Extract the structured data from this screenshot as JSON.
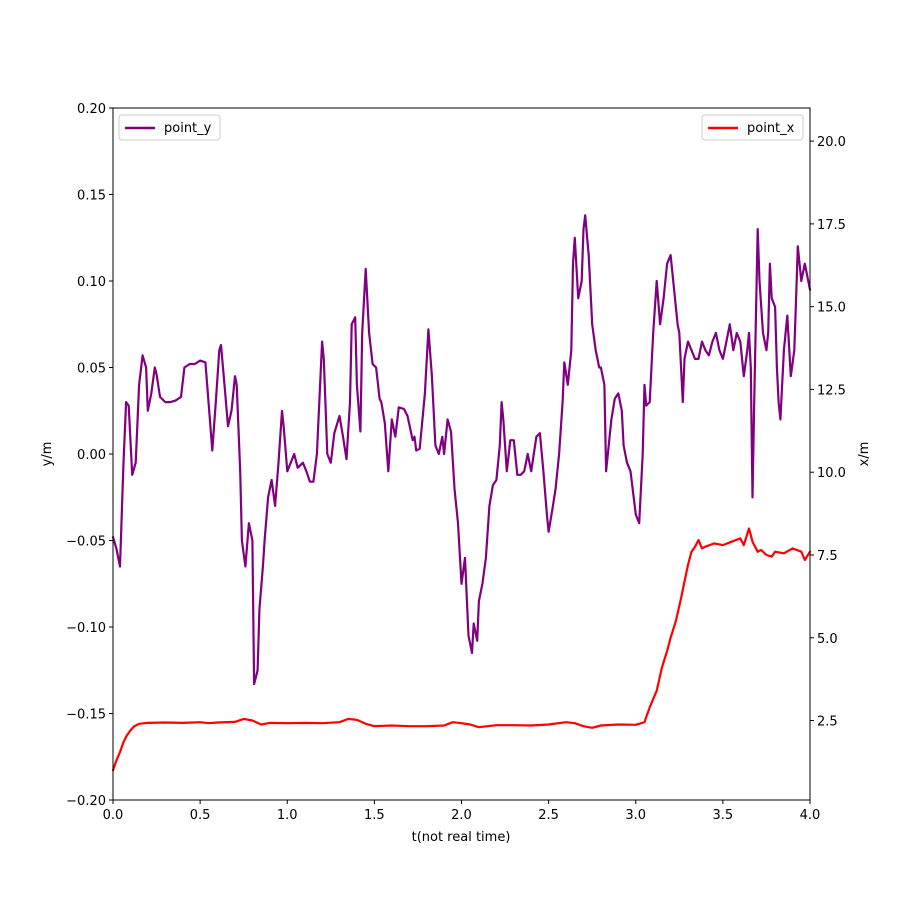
{
  "chart_data": {
    "type": "line",
    "xlabel": "t(not real time)",
    "ylabel_left": "y/m",
    "ylabel_right": "x/m",
    "xlim": [
      0,
      4
    ],
    "ylim_left": [
      -0.2,
      0.2
    ],
    "ylim_right": [
      0.1,
      21.0
    ],
    "x_ticks": [
      0.0,
      0.5,
      1.0,
      1.5,
      2.0,
      2.5,
      3.0,
      3.5,
      4.0
    ],
    "x_tick_labels": [
      "0.0",
      "0.5",
      "1.0",
      "1.5",
      "2.0",
      "2.5",
      "3.0",
      "3.5",
      "4.0"
    ],
    "y_left_ticks": [
      -0.2,
      -0.15,
      -0.1,
      -0.05,
      0.0,
      0.05,
      0.1,
      0.15,
      0.2
    ],
    "y_left_tick_labels": [
      "−0.20",
      "−0.15",
      "−0.10",
      "−0.05",
      "0.00",
      "0.05",
      "0.10",
      "0.15",
      "0.20"
    ],
    "y_right_ticks": [
      2.5,
      5.0,
      7.5,
      10.0,
      12.5,
      15.0,
      17.5,
      20.0
    ],
    "y_right_tick_labels": [
      "2.5",
      "5.0",
      "7.5",
      "10.0",
      "12.5",
      "15.0",
      "17.5",
      "20.0"
    ],
    "grid": false,
    "series": [
      {
        "name": "point_y",
        "axis": "left",
        "color": "#800080",
        "legend_position": "upper-left",
        "points": [
          [
            0.0,
            -0.048
          ],
          [
            0.02,
            -0.055
          ],
          [
            0.04,
            -0.065
          ],
          [
            0.06,
            -0.005
          ],
          [
            0.075,
            0.03
          ],
          [
            0.09,
            0.028
          ],
          [
            0.11,
            -0.012
          ],
          [
            0.13,
            -0.005
          ],
          [
            0.15,
            0.04
          ],
          [
            0.17,
            0.057
          ],
          [
            0.19,
            0.05
          ],
          [
            0.2,
            0.025
          ],
          [
            0.22,
            0.035
          ],
          [
            0.24,
            0.05
          ],
          [
            0.25,
            0.046
          ],
          [
            0.27,
            0.033
          ],
          [
            0.3,
            0.03
          ],
          [
            0.33,
            0.03
          ],
          [
            0.36,
            0.031
          ],
          [
            0.39,
            0.033
          ],
          [
            0.41,
            0.05
          ],
          [
            0.44,
            0.052
          ],
          [
            0.47,
            0.052
          ],
          [
            0.5,
            0.054
          ],
          [
            0.53,
            0.053
          ],
          [
            0.55,
            0.028
          ],
          [
            0.57,
            0.002
          ],
          [
            0.59,
            0.03
          ],
          [
            0.61,
            0.06
          ],
          [
            0.62,
            0.063
          ],
          [
            0.64,
            0.04
          ],
          [
            0.66,
            0.016
          ],
          [
            0.68,
            0.025
          ],
          [
            0.7,
            0.045
          ],
          [
            0.71,
            0.04
          ],
          [
            0.73,
            -0.01
          ],
          [
            0.74,
            -0.05
          ],
          [
            0.76,
            -0.065
          ],
          [
            0.78,
            -0.04
          ],
          [
            0.8,
            -0.05
          ],
          [
            0.81,
            -0.133
          ],
          [
            0.83,
            -0.125
          ],
          [
            0.84,
            -0.09
          ],
          [
            0.86,
            -0.065
          ],
          [
            0.87,
            -0.05
          ],
          [
            0.89,
            -0.025
          ],
          [
            0.91,
            -0.015
          ],
          [
            0.93,
            -0.03
          ],
          [
            0.95,
            -0.005
          ],
          [
            0.97,
            0.025
          ],
          [
            0.98,
            0.015
          ],
          [
            1.0,
            -0.01
          ],
          [
            1.02,
            -0.005
          ],
          [
            1.04,
            0.0
          ],
          [
            1.06,
            -0.008
          ],
          [
            1.09,
            -0.005
          ],
          [
            1.11,
            -0.01
          ],
          [
            1.13,
            -0.016
          ],
          [
            1.15,
            -0.016
          ],
          [
            1.17,
            0.0
          ],
          [
            1.2,
            0.065
          ],
          [
            1.21,
            0.055
          ],
          [
            1.23,
            0.0
          ],
          [
            1.25,
            -0.005
          ],
          [
            1.27,
            0.012
          ],
          [
            1.3,
            0.022
          ],
          [
            1.32,
            0.01
          ],
          [
            1.34,
            -0.003
          ],
          [
            1.36,
            0.03
          ],
          [
            1.37,
            0.075
          ],
          [
            1.39,
            0.079
          ],
          [
            1.4,
            0.04
          ],
          [
            1.42,
            0.013
          ],
          [
            1.43,
            0.07
          ],
          [
            1.45,
            0.107
          ],
          [
            1.47,
            0.07
          ],
          [
            1.49,
            0.052
          ],
          [
            1.51,
            0.05
          ],
          [
            1.53,
            0.032
          ],
          [
            1.54,
            0.03
          ],
          [
            1.56,
            0.018
          ],
          [
            1.58,
            -0.01
          ],
          [
            1.6,
            0.02
          ],
          [
            1.62,
            0.01
          ],
          [
            1.64,
            0.027
          ],
          [
            1.67,
            0.026
          ],
          [
            1.69,
            0.022
          ],
          [
            1.72,
            0.008
          ],
          [
            1.73,
            0.01
          ],
          [
            1.74,
            0.002
          ],
          [
            1.76,
            0.003
          ],
          [
            1.79,
            0.035
          ],
          [
            1.81,
            0.072
          ],
          [
            1.83,
            0.045
          ],
          [
            1.85,
            0.005
          ],
          [
            1.87,
            0.0
          ],
          [
            1.89,
            0.01
          ],
          [
            1.9,
            0.0
          ],
          [
            1.92,
            0.02
          ],
          [
            1.94,
            0.013
          ],
          [
            1.96,
            -0.02
          ],
          [
            1.98,
            -0.04
          ],
          [
            2.0,
            -0.075
          ],
          [
            2.02,
            -0.06
          ],
          [
            2.04,
            -0.105
          ],
          [
            2.06,
            -0.115
          ],
          [
            2.07,
            -0.098
          ],
          [
            2.09,
            -0.108
          ],
          [
            2.1,
            -0.085
          ],
          [
            2.12,
            -0.075
          ],
          [
            2.14,
            -0.06
          ],
          [
            2.16,
            -0.03
          ],
          [
            2.18,
            -0.018
          ],
          [
            2.2,
            -0.015
          ],
          [
            2.22,
            0.005
          ],
          [
            2.23,
            0.03
          ],
          [
            2.24,
            0.02
          ],
          [
            2.26,
            -0.01
          ],
          [
            2.28,
            0.008
          ],
          [
            2.3,
            0.008
          ],
          [
            2.32,
            -0.012
          ],
          [
            2.34,
            -0.012
          ],
          [
            2.36,
            -0.01
          ],
          [
            2.38,
            0.0
          ],
          [
            2.4,
            -0.01
          ],
          [
            2.43,
            0.01
          ],
          [
            2.45,
            0.012
          ],
          [
            2.47,
            -0.01
          ],
          [
            2.49,
            -0.035
          ],
          [
            2.5,
            -0.045
          ],
          [
            2.52,
            -0.033
          ],
          [
            2.54,
            -0.02
          ],
          [
            2.56,
            0.0
          ],
          [
            2.58,
            0.03
          ],
          [
            2.59,
            0.053
          ],
          [
            2.61,
            0.04
          ],
          [
            2.63,
            0.06
          ],
          [
            2.64,
            0.11
          ],
          [
            2.65,
            0.125
          ],
          [
            2.67,
            0.09
          ],
          [
            2.69,
            0.1
          ],
          [
            2.7,
            0.13
          ],
          [
            2.71,
            0.138
          ],
          [
            2.73,
            0.115
          ],
          [
            2.75,
            0.075
          ],
          [
            2.77,
            0.06
          ],
          [
            2.79,
            0.05
          ],
          [
            2.8,
            0.05
          ],
          [
            2.82,
            0.04
          ],
          [
            2.83,
            -0.01
          ],
          [
            2.85,
            0.01
          ],
          [
            2.86,
            0.02
          ],
          [
            2.88,
            0.032
          ],
          [
            2.9,
            0.035
          ],
          [
            2.92,
            0.025
          ],
          [
            2.93,
            0.005
          ],
          [
            2.95,
            -0.005
          ],
          [
            2.97,
            -0.01
          ],
          [
            3.0,
            -0.035
          ],
          [
            3.02,
            -0.04
          ],
          [
            3.04,
            0.0
          ],
          [
            3.05,
            0.04
          ],
          [
            3.06,
            0.028
          ],
          [
            3.08,
            0.03
          ],
          [
            3.1,
            0.07
          ],
          [
            3.12,
            0.1
          ],
          [
            3.14,
            0.075
          ],
          [
            3.16,
            0.09
          ],
          [
            3.18,
            0.11
          ],
          [
            3.2,
            0.115
          ],
          [
            3.22,
            0.095
          ],
          [
            3.24,
            0.075
          ],
          [
            3.25,
            0.07
          ],
          [
            3.27,
            0.03
          ],
          [
            3.28,
            0.055
          ],
          [
            3.3,
            0.065
          ],
          [
            3.32,
            0.06
          ],
          [
            3.34,
            0.055
          ],
          [
            3.36,
            0.055
          ],
          [
            3.38,
            0.065
          ],
          [
            3.4,
            0.06
          ],
          [
            3.42,
            0.057
          ],
          [
            3.44,
            0.065
          ],
          [
            3.46,
            0.07
          ],
          [
            3.48,
            0.06
          ],
          [
            3.5,
            0.055
          ],
          [
            3.52,
            0.065
          ],
          [
            3.54,
            0.075
          ],
          [
            3.56,
            0.06
          ],
          [
            3.58,
            0.07
          ],
          [
            3.6,
            0.065
          ],
          [
            3.62,
            0.045
          ],
          [
            3.64,
            0.06
          ],
          [
            3.65,
            0.07
          ],
          [
            3.66,
            0.05
          ],
          [
            3.67,
            -0.025
          ],
          [
            3.68,
            0.03
          ],
          [
            3.7,
            0.13
          ],
          [
            3.71,
            0.1
          ],
          [
            3.73,
            0.07
          ],
          [
            3.75,
            0.06
          ],
          [
            3.76,
            0.07
          ],
          [
            3.77,
            0.11
          ],
          [
            3.78,
            0.09
          ],
          [
            3.8,
            0.085
          ],
          [
            3.81,
            0.05
          ],
          [
            3.82,
            0.03
          ],
          [
            3.83,
            0.02
          ],
          [
            3.85,
            0.06
          ],
          [
            3.87,
            0.08
          ],
          [
            3.89,
            0.045
          ],
          [
            3.91,
            0.06
          ],
          [
            3.92,
            0.09
          ],
          [
            3.93,
            0.12
          ],
          [
            3.95,
            0.1
          ],
          [
            3.97,
            0.11
          ],
          [
            4.0,
            0.095
          ]
        ]
      },
      {
        "name": "point_x",
        "axis": "right",
        "color": "#ff0000",
        "legend_position": "upper-right",
        "points": [
          [
            0.0,
            1.0
          ],
          [
            0.02,
            1.3
          ],
          [
            0.04,
            1.55
          ],
          [
            0.06,
            1.85
          ],
          [
            0.08,
            2.05
          ],
          [
            0.1,
            2.2
          ],
          [
            0.12,
            2.32
          ],
          [
            0.15,
            2.4
          ],
          [
            0.2,
            2.43
          ],
          [
            0.3,
            2.44
          ],
          [
            0.4,
            2.43
          ],
          [
            0.5,
            2.45
          ],
          [
            0.55,
            2.42
          ],
          [
            0.6,
            2.44
          ],
          [
            0.7,
            2.46
          ],
          [
            0.75,
            2.55
          ],
          [
            0.8,
            2.5
          ],
          [
            0.85,
            2.38
          ],
          [
            0.9,
            2.43
          ],
          [
            1.0,
            2.42
          ],
          [
            1.1,
            2.43
          ],
          [
            1.2,
            2.42
          ],
          [
            1.3,
            2.45
          ],
          [
            1.35,
            2.55
          ],
          [
            1.4,
            2.52
          ],
          [
            1.45,
            2.4
          ],
          [
            1.5,
            2.33
          ],
          [
            1.6,
            2.35
          ],
          [
            1.7,
            2.33
          ],
          [
            1.8,
            2.33
          ],
          [
            1.9,
            2.35
          ],
          [
            1.95,
            2.45
          ],
          [
            2.0,
            2.42
          ],
          [
            2.05,
            2.38
          ],
          [
            2.1,
            2.3
          ],
          [
            2.15,
            2.33
          ],
          [
            2.2,
            2.36
          ],
          [
            2.3,
            2.36
          ],
          [
            2.4,
            2.35
          ],
          [
            2.5,
            2.38
          ],
          [
            2.6,
            2.45
          ],
          [
            2.65,
            2.42
          ],
          [
            2.7,
            2.33
          ],
          [
            2.75,
            2.28
          ],
          [
            2.8,
            2.35
          ],
          [
            2.9,
            2.38
          ],
          [
            3.0,
            2.37
          ],
          [
            3.05,
            2.45
          ],
          [
            3.08,
            2.9
          ],
          [
            3.12,
            3.4
          ],
          [
            3.15,
            4.1
          ],
          [
            3.18,
            4.6
          ],
          [
            3.2,
            5.0
          ],
          [
            3.23,
            5.5
          ],
          [
            3.26,
            6.2
          ],
          [
            3.28,
            6.7
          ],
          [
            3.3,
            7.2
          ],
          [
            3.32,
            7.6
          ],
          [
            3.34,
            7.75
          ],
          [
            3.36,
            7.95
          ],
          [
            3.38,
            7.7
          ],
          [
            3.4,
            7.75
          ],
          [
            3.45,
            7.85
          ],
          [
            3.5,
            7.8
          ],
          [
            3.55,
            7.9
          ],
          [
            3.6,
            8.0
          ],
          [
            3.62,
            7.8
          ],
          [
            3.65,
            8.3
          ],
          [
            3.67,
            7.9
          ],
          [
            3.7,
            7.6
          ],
          [
            3.72,
            7.65
          ],
          [
            3.75,
            7.5
          ],
          [
            3.78,
            7.45
          ],
          [
            3.8,
            7.6
          ],
          [
            3.85,
            7.55
          ],
          [
            3.9,
            7.7
          ],
          [
            3.95,
            7.6
          ],
          [
            3.97,
            7.35
          ],
          [
            4.0,
            7.6
          ]
        ]
      }
    ]
  }
}
